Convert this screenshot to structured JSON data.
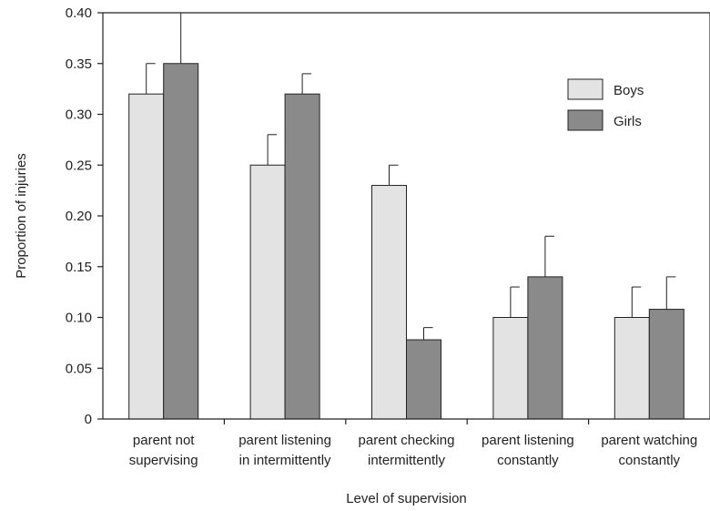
{
  "chart_data": {
    "type": "bar",
    "title": "",
    "xlabel": "Level of supervision",
    "ylabel": "Proportion of injuries",
    "ylim": [
      0,
      0.4
    ],
    "yticks": [
      "0",
      "0.05",
      "0.10",
      "0.15",
      "0.20",
      "0.25",
      "0.30",
      "0.35",
      "0.40"
    ],
    "ytick_values": [
      0,
      0.05,
      0.1,
      0.15,
      0.2,
      0.25,
      0.3,
      0.35,
      0.4
    ],
    "grid": false,
    "legend_position": "top-right",
    "categories": [
      [
        "parent not",
        "supervising"
      ],
      [
        "parent listening",
        "in intermittently"
      ],
      [
        "parent checking",
        "intermittently"
      ],
      [
        "parent listening",
        "constantly"
      ],
      [
        "parent watching",
        "constantly"
      ]
    ],
    "series": [
      {
        "name": "Boys",
        "color": "#e3e3e3",
        "values": [
          0.32,
          0.25,
          0.23,
          0.1,
          0.1
        ],
        "error_upper": [
          0.35,
          0.28,
          0.25,
          0.13,
          0.13
        ]
      },
      {
        "name": "Girls",
        "color": "#8a8a8a",
        "values": [
          0.35,
          0.32,
          0.078,
          0.14,
          0.108
        ],
        "error_upper": [
          0.4,
          0.34,
          0.09,
          0.18,
          0.14
        ]
      }
    ]
  }
}
